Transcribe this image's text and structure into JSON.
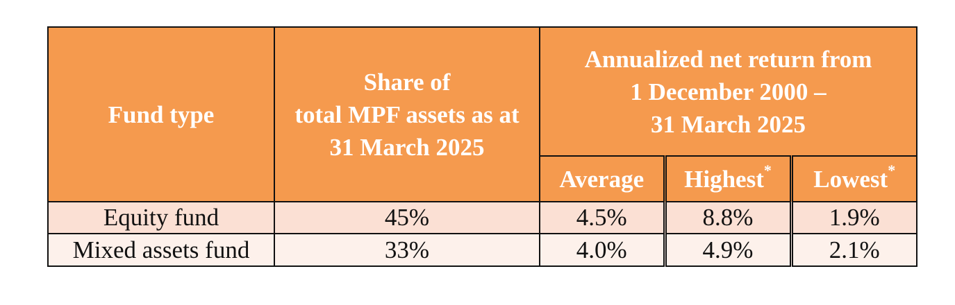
{
  "table": {
    "header": {
      "fund_type": "Fund type",
      "share_line1": "Share of",
      "share_line2": "total MPF assets as at",
      "share_line3": "31 March 2025",
      "return_line1": "Annualized net return from",
      "return_line2": "1 December 2000 –",
      "return_line3": "31 March 2025",
      "average": "Average",
      "highest": "Highest",
      "lowest": "Lowest",
      "asterisk": "*"
    },
    "rows": [
      {
        "fund_type": "Equity fund",
        "share": "45%",
        "average": "4.5%",
        "highest": "8.8%",
        "lowest": "1.9%"
      },
      {
        "fund_type": "Mixed assets fund",
        "share": "33%",
        "average": "4.0%",
        "highest": "4.9%",
        "lowest": "2.1%"
      }
    ]
  },
  "colors": {
    "header_bg": "#F59A4E",
    "header_text": "#FFFFFF",
    "row1_bg": "#FBE0D4",
    "row2_bg": "#FDF1EB",
    "border": "#111111"
  }
}
